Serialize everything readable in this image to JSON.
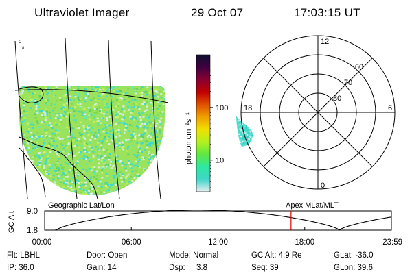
{
  "header": {
    "instrument": "Ultraviolet Imager",
    "date": "29 Oct 07",
    "time": "17:03:15 UT"
  },
  "geo_panel": {
    "map_label": "Geographic Lat/Lon",
    "corner_mark_a": "2",
    "corner_mark_b": "8"
  },
  "colorbar": {
    "unit_label": "photon cm⁻²s⁻¹",
    "ticks": [
      {
        "label": "100",
        "value": 100
      },
      {
        "label": "10",
        "value": 10
      }
    ],
    "stops": [
      "#e8eef0",
      "#3fd6c8",
      "#2ee8a0",
      "#5ee840",
      "#b4f020",
      "#f0e000",
      "#f0a000",
      "#e05000",
      "#c00000",
      "#8a0030",
      "#400040",
      "#101030"
    ]
  },
  "polar_panel": {
    "map_label": "Apex  MLat/MLT",
    "lat_labels": [
      {
        "label": "60",
        "lat": 60
      },
      {
        "label": "70",
        "lat": 70
      },
      {
        "label": "80",
        "lat": 80
      }
    ],
    "mlt_labels": [
      {
        "label": "12",
        "mlt": 12
      },
      {
        "label": "18",
        "mlt": 18
      },
      {
        "label": "6",
        "mlt": 6
      },
      {
        "label": "0",
        "mlt": 0
      }
    ]
  },
  "altitude_plot": {
    "ylabel": "GC Alt",
    "y_ticks": [
      {
        "label": "9.0",
        "value": 9.0
      },
      {
        "label": "1.8",
        "value": 1.8
      }
    ],
    "ylim": [
      1.8,
      9.0
    ],
    "x_ticks": [
      {
        "label": "00:00",
        "hour": 0
      },
      {
        "label": "06:00",
        "hour": 6
      },
      {
        "label": "12:00",
        "hour": 12
      },
      {
        "label": "18:00",
        "hour": 18
      },
      {
        "label": "23:59",
        "hour": 23.983
      }
    ],
    "current_hour": 17.054,
    "marker_color": "#e00000"
  },
  "info": {
    "filter": "Flt: LBHL",
    "door": "Door: Open",
    "mode": "Mode: Normal",
    "gc_alt": "GC Alt: 4.9 Re",
    "glat": "GLat: -36.0",
    "ip": "IP: 36.0",
    "gain": "Gain: 14",
    "dsp_label": "Dsp:",
    "dsp_value": "3.8",
    "seq": "Seq: 39",
    "glon": "GLon:  39.6"
  }
}
